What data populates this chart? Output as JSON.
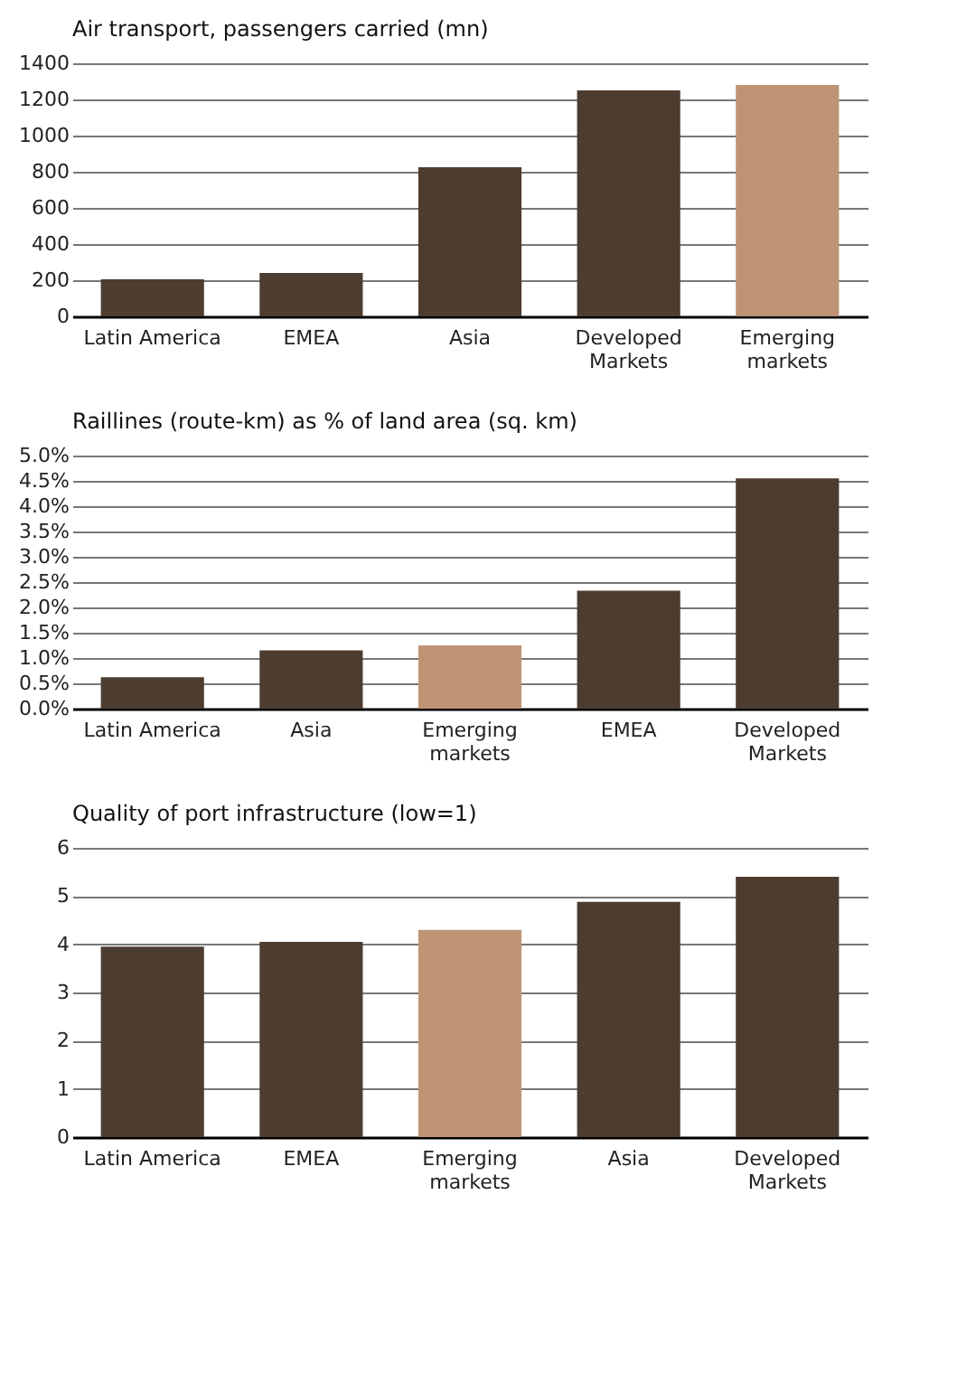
{
  "chart_data": [
    {
      "type": "bar",
      "title": "Air transport, passengers carried (mn)",
      "categories": [
        "Latin America",
        "EMEA",
        "Asia",
        "Developed Markets",
        "Emerging markets"
      ],
      "values": [
        205,
        240,
        825,
        1250,
        1280
      ],
      "colors": [
        "#4d3c30",
        "#4d3c30",
        "#4d3c30",
        "#4d3c30",
        "#bf9474"
      ],
      "ylim": [
        0,
        1400
      ],
      "yticks": [
        0,
        200,
        400,
        600,
        800,
        1000,
        1200,
        1400
      ],
      "grid": "y"
    },
    {
      "type": "bar",
      "title": "Raillines (route-km) as % of land area (sq. km)",
      "categories": [
        "Latin America",
        "Asia",
        "Emerging markets",
        "EMEA",
        "Developed Markets"
      ],
      "values": [
        0.62,
        1.15,
        1.25,
        2.33,
        4.55
      ],
      "colors": [
        "#4d3c30",
        "#4d3c30",
        "#bf9474",
        "#4d3c30",
        "#4d3c30"
      ],
      "ylim": [
        0,
        5
      ],
      "yticks": [
        {
          "value": 0,
          "label": "0.0%"
        },
        {
          "value": 0.5,
          "label": "0.5%"
        },
        {
          "value": 1,
          "label": "1.0%"
        },
        {
          "value": 1.5,
          "label": "1.5%"
        },
        {
          "value": 2,
          "label": "2.0%"
        },
        {
          "value": 2.5,
          "label": "2.5%"
        },
        {
          "value": 3,
          "label": "3.0%"
        },
        {
          "value": 3.5,
          "label": "3.5%"
        },
        {
          "value": 4,
          "label": "4.0%"
        },
        {
          "value": 4.5,
          "label": "4.5%"
        },
        {
          "value": 5,
          "label": "5.0%"
        }
      ],
      "grid": "y"
    },
    {
      "type": "bar",
      "title": "Quality of port infrastructure (low=1)",
      "categories": [
        "Latin America",
        "EMEA",
        "Emerging markets",
        "Asia",
        "Developed Markets"
      ],
      "values": [
        3.95,
        4.05,
        4.3,
        4.88,
        5.4
      ],
      "colors": [
        "#4d3c30",
        "#4d3c30",
        "#bf9474",
        "#4d3c30",
        "#4d3c30"
      ],
      "ylim": [
        0,
        6
      ],
      "yticks": [
        0,
        1,
        2,
        3,
        4,
        5,
        6
      ],
      "grid": "y"
    }
  ]
}
